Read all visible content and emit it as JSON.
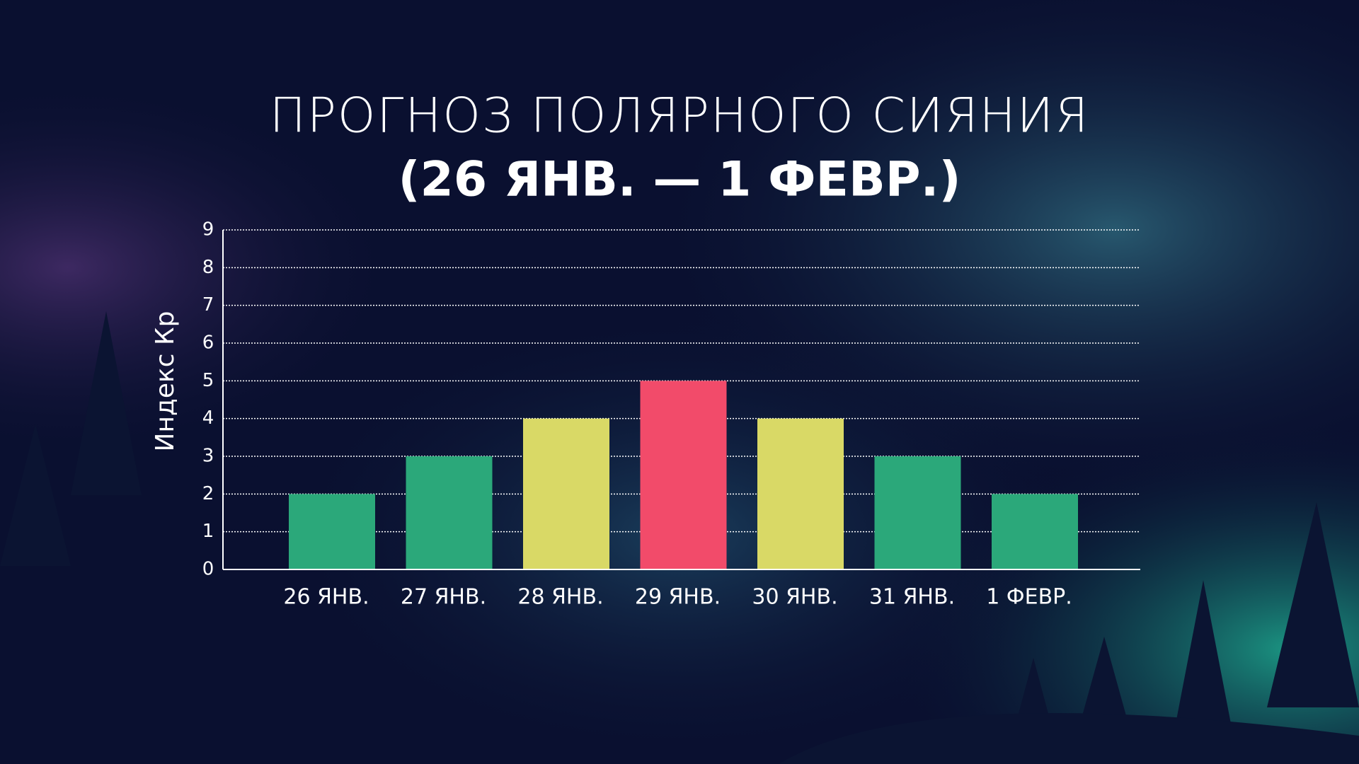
{
  "chart_data": {
    "type": "bar",
    "title": "ПРОГНОЗ ПОЛЯРНОГО СИЯНИЯ",
    "subtitle": "(26 ЯНВ. — 1 ФЕВР.)",
    "y_label": "Индекс Кр",
    "categories": [
      "26 ЯНВ.",
      "27 ЯНВ.",
      "28 ЯНВ.",
      "29 ЯНВ.",
      "30 ЯНВ.",
      "31 ЯНВ.",
      "1 ФЕВР."
    ],
    "values": [
      2,
      3,
      4,
      5,
      4,
      3,
      2
    ],
    "colors": [
      "#2ba87a",
      "#2ba87a",
      "#d9d966",
      "#f24b6a",
      "#d9d966",
      "#2ba87a",
      "#2ba87a"
    ],
    "ylim": [
      0,
      9
    ],
    "yticks": [
      0,
      1,
      2,
      3,
      4,
      5,
      6,
      7,
      8,
      9
    ],
    "grid": true
  }
}
